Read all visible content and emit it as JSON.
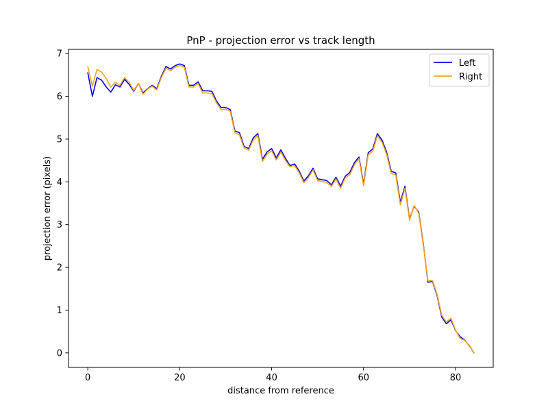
{
  "chart_data": {
    "type": "line",
    "title": "PnP - projection error vs track length",
    "xlabel": "distance from reference",
    "ylabel": "projection error (pixels)",
    "xlim": [
      -4.2,
      88.2
    ],
    "ylim": [
      -0.34,
      7.1
    ],
    "xticks": [
      0,
      20,
      40,
      60,
      80
    ],
    "yticks": [
      0,
      1,
      2,
      3,
      4,
      5,
      6,
      7
    ],
    "grid": false,
    "legend_position": "top-right",
    "series": [
      {
        "name": "Left",
        "color": "#0000ff",
        "values": [
          6.55,
          6.0,
          6.44,
          6.38,
          6.22,
          6.1,
          6.27,
          6.22,
          6.4,
          6.28,
          6.12,
          6.3,
          6.08,
          6.18,
          6.26,
          6.18,
          6.47,
          6.7,
          6.64,
          6.72,
          6.76,
          6.72,
          6.26,
          6.26,
          6.34,
          6.13,
          6.13,
          6.12,
          5.89,
          5.74,
          5.74,
          5.69,
          5.19,
          5.15,
          4.83,
          4.78,
          5.03,
          5.13,
          4.53,
          4.7,
          4.78,
          4.56,
          4.75,
          4.55,
          4.38,
          4.42,
          4.25,
          4.02,
          4.14,
          4.32,
          4.07,
          4.05,
          4.03,
          3.93,
          4.11,
          3.9,
          4.13,
          4.22,
          4.45,
          4.58,
          3.95,
          4.68,
          4.77,
          5.13,
          4.98,
          4.7,
          4.25,
          4.21,
          3.52,
          3.9,
          3.13,
          3.43,
          3.29,
          2.54,
          1.65,
          1.67,
          1.34,
          0.84,
          0.68,
          0.77,
          0.52,
          0.38,
          0.3,
          0.17,
          0.0
        ]
      },
      {
        "name": "Right",
        "color": "#ffa500",
        "values": [
          6.69,
          6.24,
          6.63,
          6.57,
          6.42,
          6.22,
          6.33,
          6.26,
          6.44,
          6.33,
          6.14,
          6.3,
          6.05,
          6.17,
          6.24,
          6.15,
          6.44,
          6.66,
          6.6,
          6.68,
          6.72,
          6.68,
          6.22,
          6.22,
          6.3,
          6.08,
          6.08,
          6.07,
          5.85,
          5.69,
          5.7,
          5.65,
          5.15,
          5.1,
          4.79,
          4.74,
          4.98,
          5.08,
          4.48,
          4.65,
          4.73,
          4.51,
          4.7,
          4.5,
          4.35,
          4.38,
          4.21,
          3.98,
          4.1,
          4.28,
          4.03,
          4.01,
          3.98,
          3.89,
          4.07,
          3.85,
          4.09,
          4.17,
          4.4,
          4.54,
          3.91,
          4.63,
          4.72,
          5.08,
          4.93,
          4.65,
          4.2,
          4.16,
          3.46,
          3.85,
          3.1,
          3.45,
          3.26,
          2.51,
          1.69,
          1.69,
          1.37,
          0.88,
          0.72,
          0.81,
          0.53,
          0.34,
          0.29,
          0.18,
          0.0
        ]
      }
    ]
  }
}
